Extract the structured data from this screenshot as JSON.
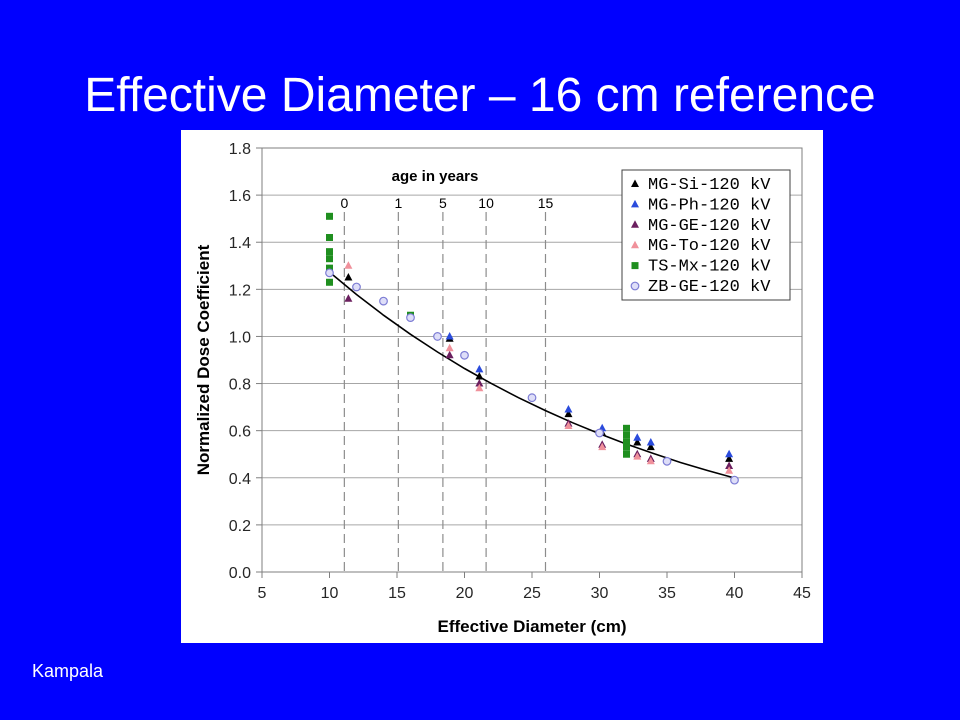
{
  "slide": {
    "title": "Effective Diameter – 16 cm reference",
    "footer": "Kampala",
    "background": "#0000ff",
    "text_color": "#ffffff"
  },
  "chart_data": {
    "type": "scatter",
    "xlabel": "Effective Diameter (cm)",
    "ylabel": "Normalized Dose Coefficient",
    "xlim": [
      5,
      45
    ],
    "ylim": [
      0,
      1.8
    ],
    "x_ticks": [
      "5",
      "10",
      "15",
      "20",
      "25",
      "30",
      "35",
      "40",
      "45"
    ],
    "y_ticks": [
      "0.0",
      "0.2",
      "0.4",
      "0.6",
      "0.8",
      "1.0",
      "1.2",
      "1.4",
      "1.6",
      "1.8"
    ],
    "grid": "horizontal",
    "legend_position": "top-right",
    "age_axis_label": "age in years",
    "age_markers": [
      {
        "label": "0",
        "x": 11.1
      },
      {
        "label": "1",
        "x": 15.1
      },
      {
        "label": "5",
        "x": 18.4
      },
      {
        "label": "10",
        "x": 21.6
      },
      {
        "label": "15",
        "x": 26.0
      }
    ],
    "series": [
      {
        "name": "MG-Si-120 kV",
        "marker": "triangle",
        "color": "#000000",
        "x": [
          11.4,
          18.9,
          21.1,
          27.7,
          30.2,
          32.8,
          33.8,
          39.6
        ],
        "y": [
          1.25,
          0.99,
          0.83,
          0.67,
          0.59,
          0.55,
          0.53,
          0.48
        ]
      },
      {
        "name": "MG-Ph-120 kV",
        "marker": "triangle",
        "color": "#2a4bdc",
        "x": [
          18.9,
          21.1,
          27.7,
          30.2,
          32.8,
          33.8,
          39.6
        ],
        "y": [
          1.0,
          0.86,
          0.69,
          0.61,
          0.57,
          0.55,
          0.5
        ]
      },
      {
        "name": "MG-GE-120 kV",
        "marker": "triangle",
        "color": "#6b1f5f",
        "x": [
          11.4,
          18.9,
          21.1,
          27.7,
          30.2,
          32.8,
          33.8,
          39.6
        ],
        "y": [
          1.16,
          0.92,
          0.8,
          0.63,
          0.54,
          0.5,
          0.48,
          0.45
        ]
      },
      {
        "name": "MG-To-120 kV",
        "marker": "triangle",
        "color": "#f0919b",
        "x": [
          11.4,
          18.9,
          21.1,
          27.7,
          30.2,
          32.8,
          33.8,
          39.6
        ],
        "y": [
          1.3,
          0.95,
          0.78,
          0.62,
          0.53,
          0.49,
          0.47,
          0.43
        ]
      },
      {
        "name": "TS-Mx-120 kV",
        "marker": "square",
        "color": "#1f8f1f",
        "x": [
          10,
          10,
          10,
          10,
          10,
          10,
          16,
          32,
          32,
          32,
          32,
          32
        ],
        "y": [
          1.51,
          1.42,
          1.36,
          1.33,
          1.29,
          1.23,
          1.09,
          0.61,
          0.58,
          0.55,
          0.53,
          0.5
        ]
      },
      {
        "name": "ZB-GE-120 kV",
        "marker": "circle-open",
        "color": "#7c7cd4",
        "fill": "#dedef8",
        "x": [
          10,
          12,
          14,
          16,
          18,
          20,
          25,
          30,
          35,
          40
        ],
        "y": [
          1.27,
          1.21,
          1.15,
          1.08,
          1.0,
          0.92,
          0.74,
          0.59,
          0.47,
          0.39
        ]
      }
    ],
    "fit_curve": {
      "color": "#000000",
      "x": [
        10,
        12,
        14,
        16,
        18,
        20,
        22,
        24,
        26,
        28,
        30,
        32,
        34,
        36,
        38,
        40
      ],
      "y": [
        1.273,
        1.178,
        1.09,
        1.009,
        0.934,
        0.864,
        0.8,
        0.74,
        0.685,
        0.634,
        0.587,
        0.543,
        0.503,
        0.465,
        0.431,
        0.399
      ]
    }
  }
}
